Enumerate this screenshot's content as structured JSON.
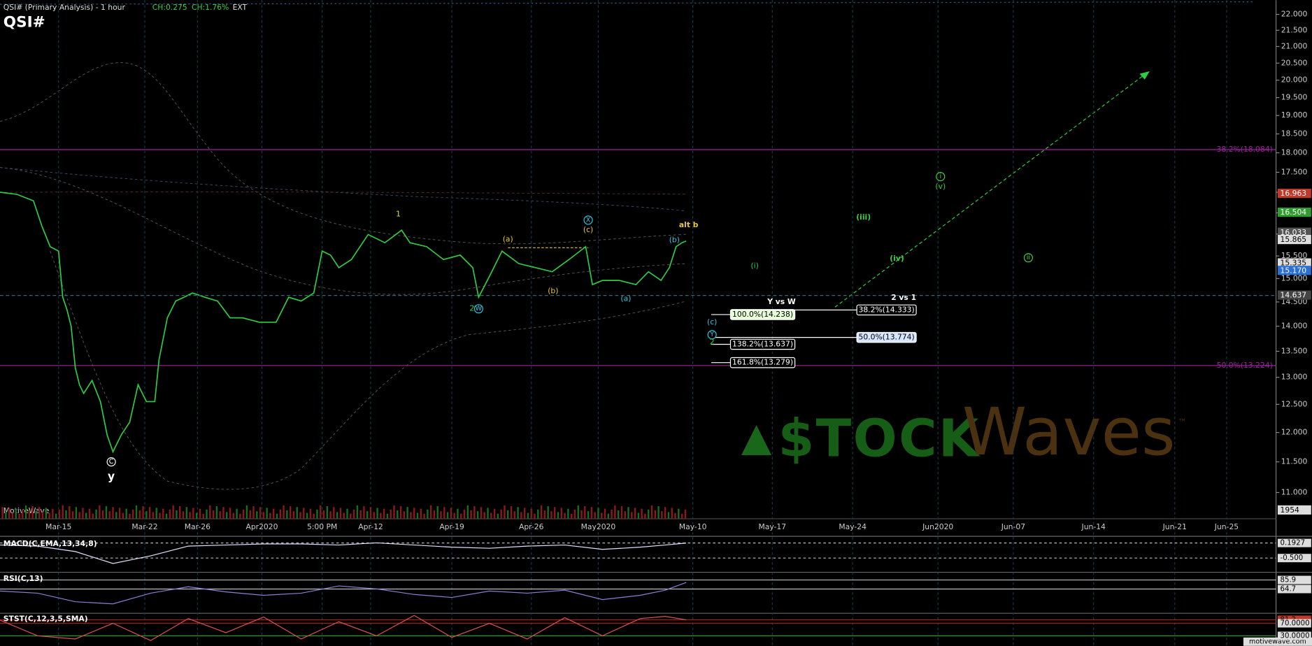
{
  "chart_data": {
    "type": "line",
    "title": "QSI# (Primary Analysis) - 1 hour",
    "header_stats": [
      "CH:0.275",
      "CH:1.76%",
      "EXT"
    ],
    "symbol": "QSI#",
    "source": "MotiveWave",
    "footer": "motivewave.com",
    "log": true,
    "grid": "x",
    "x": [
      0,
      4,
      8,
      10,
      12,
      14,
      15,
      16,
      17,
      18,
      19,
      20,
      22,
      24,
      25.6,
      27,
      29,
      31,
      33,
      35,
      37,
      38,
      40,
      42,
      44,
      46,
      49,
      52,
      55,
      58,
      62,
      66,
      69,
      72,
      75,
      77,
      79,
      81,
      84,
      88,
      92,
      96,
      98,
      102,
      106,
      110,
      113,
      114.4,
      117,
      120,
      124,
      128,
      132,
      136,
      140,
      141.6,
      144,
      148,
      152,
      155,
      158,
      160,
      161.6,
      163,
      164
    ],
    "series": [
      {
        "color": "#2ecc40",
        "values": [
          17.0,
          16.95,
          16.79,
          16.19,
          15.71,
          15.61,
          14.6,
          14.34,
          14.0,
          13.18,
          12.86,
          12.7,
          12.94,
          12.55,
          11.96,
          11.67,
          11.96,
          12.18,
          12.86,
          12.55,
          12.55,
          13.33,
          14.17,
          14.52,
          14.6,
          14.69,
          14.6,
          14.52,
          14.17,
          14.17,
          14.08,
          14.08,
          14.6,
          14.52,
          14.69,
          15.61,
          15.52,
          15.24,
          15.42,
          15.99,
          15.8,
          16.09,
          15.8,
          15.71,
          15.42,
          15.52,
          15.24,
          14.6,
          15.05,
          15.61,
          15.33,
          15.24,
          15.15,
          15.42,
          15.71,
          14.87,
          14.96,
          14.96,
          14.87,
          15.15,
          14.96,
          15.24,
          15.71,
          15.8,
          15.84
        ]
      }
    ],
    "xlim": [
      0,
      305
    ],
    "xticks": [
      {
        "value": 14,
        "label": "Mar-15"
      },
      {
        "value": 34.6,
        "label": "Mar-22"
      },
      {
        "value": 47.2,
        "label": "Mar-26"
      },
      {
        "value": 62.6,
        "label": "Apr2020"
      },
      {
        "value": 77,
        "label": "5:00 PM"
      },
      {
        "value": 88.6,
        "label": "Apr-12"
      },
      {
        "value": 108,
        "label": "Apr-19"
      },
      {
        "value": 127,
        "label": "Apr-26"
      },
      {
        "value": 143,
        "label": "May2020"
      },
      {
        "value": 165.6,
        "label": "May-10"
      },
      {
        "value": 184.6,
        "label": "May-17"
      },
      {
        "value": 203.8,
        "label": "May-24"
      },
      {
        "value": 224.2,
        "label": "Jun2020"
      },
      {
        "value": 242.2,
        "label": "Jun-07"
      },
      {
        "value": 261.4,
        "label": "Jun-14"
      },
      {
        "value": 280.8,
        "label": "Jun-21"
      },
      {
        "value": 293.2,
        "label": "Jun-25"
      }
    ],
    "ylim": [
      10.59,
      22.46
    ],
    "yticks": [
      {
        "value": 11,
        "label": "11.000"
      },
      {
        "value": 11.5,
        "label": "11.500"
      },
      {
        "value": 12,
        "label": "12.000"
      },
      {
        "value": 12.5,
        "label": "12.500"
      },
      {
        "value": 13,
        "label": "13.000"
      },
      {
        "value": 13.5,
        "label": "13.500"
      },
      {
        "value": 14,
        "label": "14.000"
      },
      {
        "value": 14.5,
        "label": "14.500"
      },
      {
        "value": 15,
        "label": "15.000"
      },
      {
        "value": 15.5,
        "label": "15.500"
      },
      {
        "value": 16,
        "label": "16.000"
      },
      {
        "value": 16.5,
        "label": "16.500"
      },
      {
        "value": 17,
        "label": "17.000"
      },
      {
        "value": 17.5,
        "label": "17.500"
      },
      {
        "value": 18,
        "label": "18.000"
      },
      {
        "value": 18.5,
        "label": "18.500"
      },
      {
        "value": 19,
        "label": "19.000"
      },
      {
        "value": 19.5,
        "label": "19.500"
      },
      {
        "value": 20,
        "label": "20.000"
      },
      {
        "value": 20.5,
        "label": "20.500"
      },
      {
        "value": 21,
        "label": "21.000"
      },
      {
        "value": 21.5,
        "label": "21.500"
      },
      {
        "value": 22,
        "label": "22.000"
      }
    ],
    "price_tags": [
      {
        "value": 16.963,
        "color": "#c0392b"
      },
      {
        "value": 16.504,
        "color": "#2e9e2e"
      },
      {
        "value": 16.033,
        "color": "#555555"
      },
      {
        "value": 15.865,
        "color": "#dddddd"
      },
      {
        "value": 15.335,
        "color": "#dddddd"
      },
      {
        "value": 15.17,
        "label": "15.170",
        "color": "#2a6fd6"
      },
      {
        "value": 14.637,
        "color": "#444444"
      }
    ],
    "volume_tag": 1954,
    "levels": [
      {
        "value": 18.084,
        "label": "38.2%(18.084)",
        "color": "#a020a0"
      },
      {
        "value": 13.224,
        "label": "50.0%(13.224)",
        "color": "#a020a0"
      }
    ],
    "fib_boxes": [
      {
        "value": 14.238,
        "label": "100.0%(14.238)",
        "color": "#e6ffd6"
      },
      {
        "value": 13.637,
        "label": "138.2%(13.637)",
        "color": "#000000"
      },
      {
        "value": 13.279,
        "label": "161.8%(13.279)",
        "color": "#000000"
      },
      {
        "value": 14.333,
        "label": "38.2%(14.333)",
        "color": "#000000"
      },
      {
        "value": 13.774,
        "label": "50.0%(13.774)",
        "color": "#d6e6ff"
      }
    ],
    "annotations": [
      {
        "text": "1",
        "color": "#c8e632"
      },
      {
        "text": "(a)",
        "color": "#e6c832"
      },
      {
        "text": "(b)",
        "color": "#e6c832"
      },
      {
        "text": "X",
        "color": "#29c7e0",
        "circled": true
      },
      {
        "text": "(c)",
        "color": "#e6c832"
      },
      {
        "text": "alt b",
        "color": "#e6c832"
      },
      {
        "text": "(b)",
        "color": "#29c7e0"
      },
      {
        "text": "(a)",
        "color": "#29c7e0"
      },
      {
        "text": "2",
        "color": "#3ccf3c"
      },
      {
        "text": "W",
        "color": "#29c7e0",
        "circled": true
      },
      {
        "text": "C",
        "color": "#ffffff",
        "circled": true
      },
      {
        "text": "y",
        "color": "#ffffff"
      },
      {
        "text": "(i)",
        "color": "#3ccf3c"
      },
      {
        "text": "(iii)",
        "color": "#3ccf3c"
      },
      {
        "text": "(iv)",
        "color": "#3ccf3c"
      },
      {
        "text": "i",
        "color": "#3ccf3c",
        "circled": true
      },
      {
        "text": "(v)",
        "color": "#3ccf3c"
      },
      {
        "text": "ii",
        "color": "#3ccf3c",
        "circled": true
      },
      {
        "text": "(c)",
        "color": "#29c7e0"
      },
      {
        "text": "Y",
        "color": "#29c7e0",
        "circled": true
      },
      {
        "text": "2",
        "color": "#3ccf3c"
      },
      {
        "text": "Y vs W",
        "color": "#ffffff"
      },
      {
        "text": "2 vs 1",
        "color": "#ffffff"
      }
    ],
    "watermark": {
      "part1": "$TOCK",
      "part2": "Waves",
      "mark": "™"
    },
    "indicators": [
      {
        "name": "MACD(C,EMA,13,34,8)",
        "color": "#e0e0ff",
        "x": [
          0,
          9,
          18,
          27,
          36,
          45,
          54,
          63,
          72,
          81,
          90,
          99,
          108,
          117,
          126,
          135,
          144,
          153,
          159,
          164
        ],
        "values": [
          0.1,
          0.05,
          -0.2,
          -0.75,
          -0.4,
          0.05,
          0.1,
          0.15,
          0.15,
          0.1,
          0.2,
          0.1,
          0.0,
          -0.05,
          0.05,
          0.1,
          -0.1,
          0.0,
          0.1,
          0.19
        ],
        "ylim": [
          -1.077,
          0.385
        ],
        "yticks": [
          0.1927,
          {
            "value": -0.5,
            "label": "-0.500"
          }
        ]
      },
      {
        "name": "RSI(C,13)",
        "color": "#8a7fd6",
        "x": [
          0,
          9,
          18,
          27,
          36,
          45,
          54,
          63,
          72,
          81,
          90,
          99,
          108,
          117,
          126,
          135,
          144,
          153,
          159,
          164
        ],
        "values": [
          60,
          55,
          35,
          30,
          55,
          70,
          58,
          50,
          55,
          72,
          65,
          52,
          45,
          60,
          55,
          62,
          40,
          50,
          62,
          80
        ],
        "ylim": [
          10,
          100
        ],
        "yticks": [
          85.9,
          64.7
        ]
      },
      {
        "name": "STST(C,12,3,5,SMA)",
        "color": "#e05050",
        "x": [
          0,
          9,
          18,
          27,
          36,
          45,
          54,
          63,
          72,
          81,
          90,
          99,
          108,
          117,
          126,
          135,
          144,
          153,
          159,
          164
        ],
        "values": [
          80,
          30,
          20,
          70,
          15,
          85,
          40,
          90,
          20,
          75,
          30,
          95,
          25,
          70,
          20,
          88,
          30,
          85,
          92,
          81
        ],
        "ylim": [
          8.7,
          99.3
        ],
        "yticks": [
          81.2,
          {
            "value": 70,
            "label": "70.0000"
          },
          {
            "value": 30,
            "label": "30.0000"
          }
        ]
      }
    ]
  }
}
